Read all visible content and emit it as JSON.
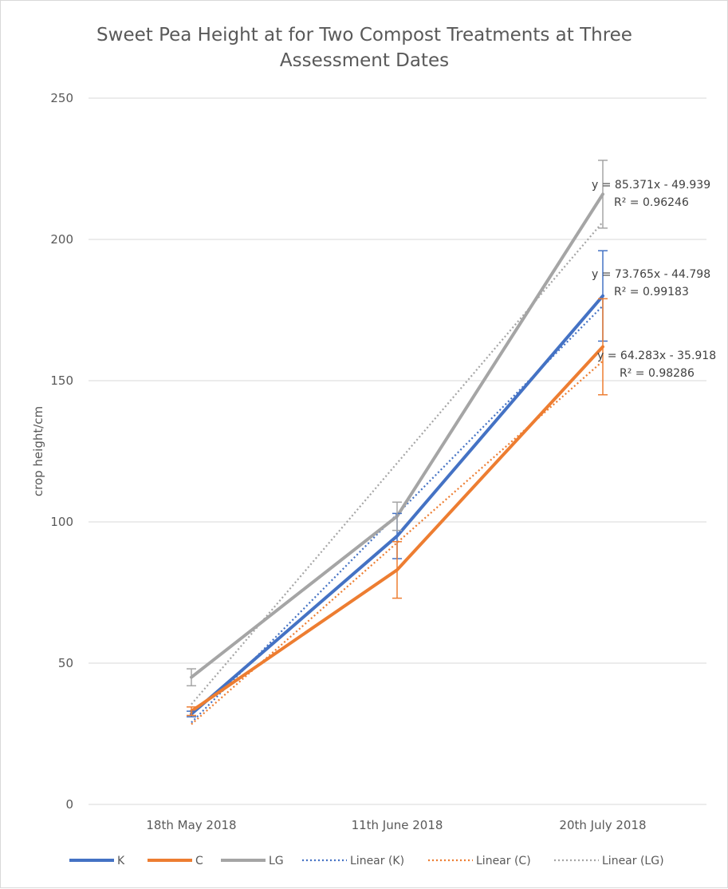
{
  "chart_data": {
    "type": "line",
    "title_lines": [
      "Sweet Pea Height at for Two Compost Treatments at Three",
      "Assessment Dates"
    ],
    "xlabel": "",
    "ylabel": "crop height/cm",
    "categories": [
      "18th May 2018",
      "11th June 2018",
      "20th July 2018"
    ],
    "ylim": [
      0,
      250
    ],
    "yticks": [
      0,
      50,
      100,
      150,
      200,
      250
    ],
    "gridlines": true,
    "legend_position": "bottom",
    "series": [
      {
        "name": "K",
        "color": "#4472c4",
        "values": [
          32,
          95,
          180
        ],
        "error": [
          1,
          8,
          16
        ]
      },
      {
        "name": "C",
        "color": "#ed7d31",
        "values": [
          33,
          83,
          162
        ],
        "error": [
          1.5,
          10,
          17
        ]
      },
      {
        "name": "LG",
        "color": "#a5a5a5",
        "values": [
          45,
          102,
          216
        ],
        "error": [
          3,
          5,
          12
        ]
      }
    ],
    "trendlines": [
      {
        "name": "Linear (K)",
        "color": "#4472c4",
        "slope": 73.765,
        "intercept": -44.798,
        "equation": "y = 73.765x - 44.798",
        "r2": "R² = 0.99183"
      },
      {
        "name": "Linear (C)",
        "color": "#ed7d31",
        "slope": 64.283,
        "intercept": -35.918,
        "equation": "y = 64.283x - 35.918",
        "r2": "R² = 0.98286"
      },
      {
        "name": "Linear (LG)",
        "color": "#a5a5a5",
        "slope": 85.371,
        "intercept": -49.939,
        "equation": "y = 85.371x - 49.939",
        "r2": "R² = 0.96246"
      }
    ]
  }
}
